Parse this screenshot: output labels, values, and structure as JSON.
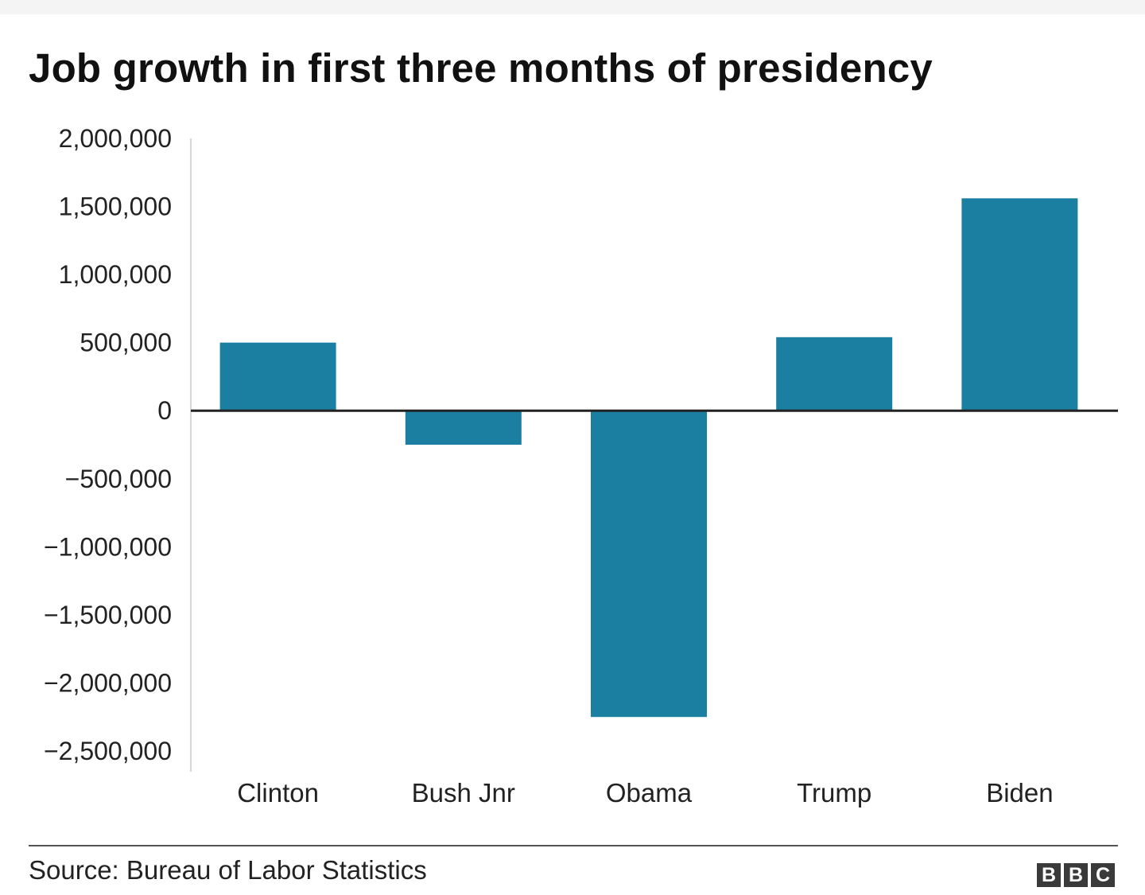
{
  "chart_data": {
    "type": "bar",
    "title": "Job growth in first three months of presidency",
    "categories": [
      "Clinton",
      "Bush Jnr",
      "Obama",
      "Trump",
      "Biden"
    ],
    "values": [
      500000,
      -250000,
      -2250000,
      540000,
      1560000
    ],
    "ylim": [
      -2500000,
      2000000
    ],
    "yticks": [
      2000000,
      1500000,
      1000000,
      500000,
      0,
      -500000,
      -1000000,
      -1500000,
      -2000000,
      -2500000
    ],
    "ytick_labels": [
      "2,000,000",
      "1,500,000",
      "1,000,000",
      "500,000",
      "0",
      "−500,000",
      "−1,000,000",
      "−1,500,000",
      "−2,000,000",
      "−2,500,000"
    ],
    "xlabel": "",
    "ylabel": "",
    "grid": false,
    "bar_color": "#1a7fa1"
  },
  "footer": {
    "source": "Source: Bureau of Labor Statistics",
    "logo_letters": [
      "B",
      "B",
      "C"
    ]
  }
}
